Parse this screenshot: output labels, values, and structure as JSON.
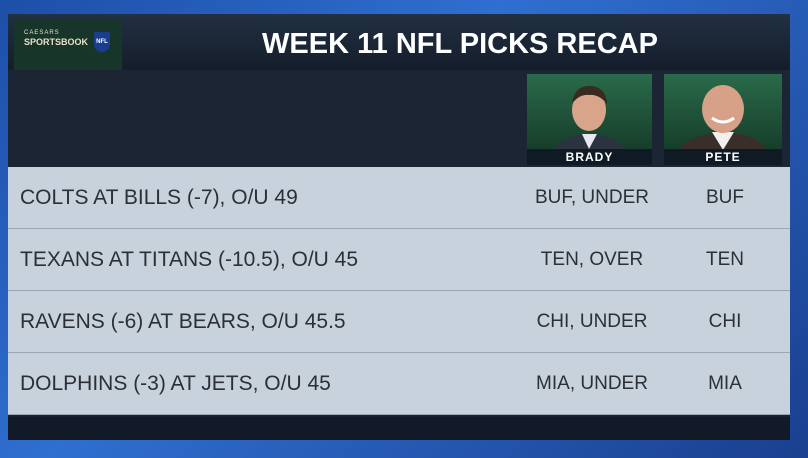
{
  "header": {
    "logo_top": "CAESARS",
    "logo_main": "SPORTSBOOK",
    "logo_badge": "NFL",
    "title": "WEEK 11 NFL PICKS RECAP"
  },
  "columns": [
    "BRADY",
    "PETE"
  ],
  "table": {
    "rows": [
      [
        "COLTS AT BILLS (-7), O/U 49",
        "BUF, UNDER",
        "BUF"
      ],
      [
        "TEXANS AT TITANS (-10.5), O/U 45",
        "TEN, OVER",
        "TEN"
      ],
      [
        "RAVENS (-6) AT BEARS, O/U 45.5",
        "CHI, UNDER",
        "CHI"
      ],
      [
        "DOLPHINS (-3) AT JETS, O/U 45",
        "MIA, UNDER",
        "MIA"
      ]
    ]
  }
}
